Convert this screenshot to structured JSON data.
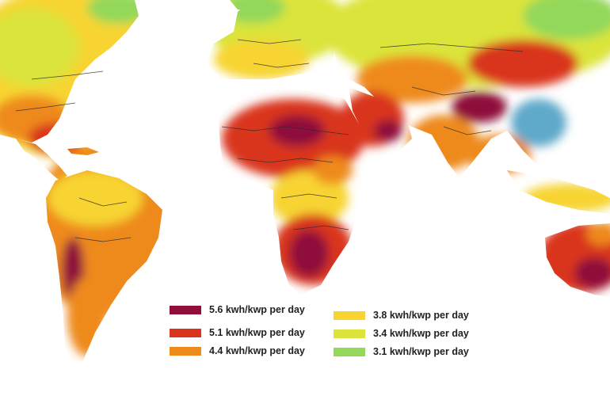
{
  "map": {
    "palette": {
      "c56": "#8f0f3a",
      "c51": "#d9341e",
      "c44": "#ee8a1c",
      "c38": "#f7d430",
      "c34": "#dbe43a",
      "c31": "#93d85a",
      "cool": "#6cc0a0",
      "cool2": "#5fa9c9",
      "ocean": "#ffffff",
      "border": "#2b2b2b"
    }
  },
  "legend": {
    "items": [
      {
        "label": "5.6 kwh/kwp per day",
        "color": "#8f0f3a"
      },
      {
        "label": "5.1 kwh/kwp per day",
        "color": "#d9341e"
      },
      {
        "label": "4.4 kwh/kwp per day",
        "color": "#ee8a1c"
      },
      {
        "label": "3.8 kwh/kwp per day",
        "color": "#f7d430"
      },
      {
        "label": "3.4 kwh/kwp per day",
        "color": "#dbe43a"
      },
      {
        "label": "3.1 kwh/kwp per day",
        "color": "#93d85a"
      }
    ]
  }
}
